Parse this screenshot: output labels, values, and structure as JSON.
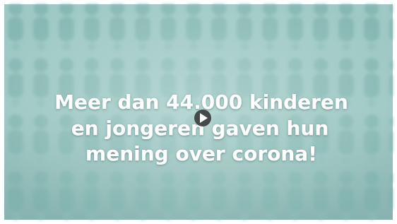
{
  "video": {
    "caption_lines": [
      "Meer dan 44.000 kinderen",
      "en jongeren gaven hun",
      "mening over corona!"
    ]
  }
}
